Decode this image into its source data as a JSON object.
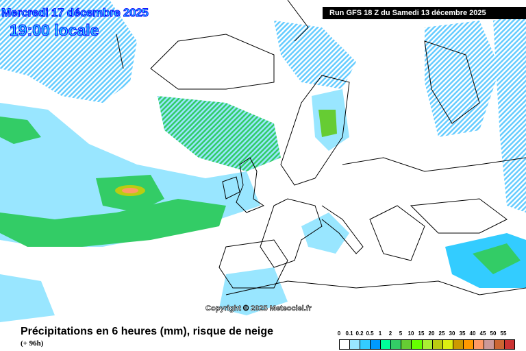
{
  "header": {
    "date": "Mercredi 17 décembre 2025",
    "time": "19:00 locale",
    "run": "Run GFS 18 Z du Samedi 13 décembre 2025"
  },
  "map": {
    "copyright": "Copyright © 2025 Meteociel.fr",
    "background_color": "#ffffff",
    "coastline_color": "#000000"
  },
  "footer": {
    "title": "Précipitations en 6 heures (mm), risque de neige",
    "subtitle": "(+ 96h)"
  },
  "legend": {
    "labels": [
      "0",
      "0.1",
      "0.2",
      "0.5",
      "1",
      "2",
      "5",
      "10",
      "15",
      "20",
      "25",
      "30",
      "35",
      "40",
      "45",
      "50",
      "55"
    ],
    "colors": [
      "#ffffff",
      "#99e6ff",
      "#33ccff",
      "#0099ff",
      "#00ff99",
      "#33cc66",
      "#66cc33",
      "#66ff00",
      "#aaee33",
      "#bbcc11",
      "#ddee11",
      "#cc9900",
      "#ff9900",
      "#ff9966",
      "#cc9999",
      "#cc6633",
      "#cc3333"
    ]
  }
}
